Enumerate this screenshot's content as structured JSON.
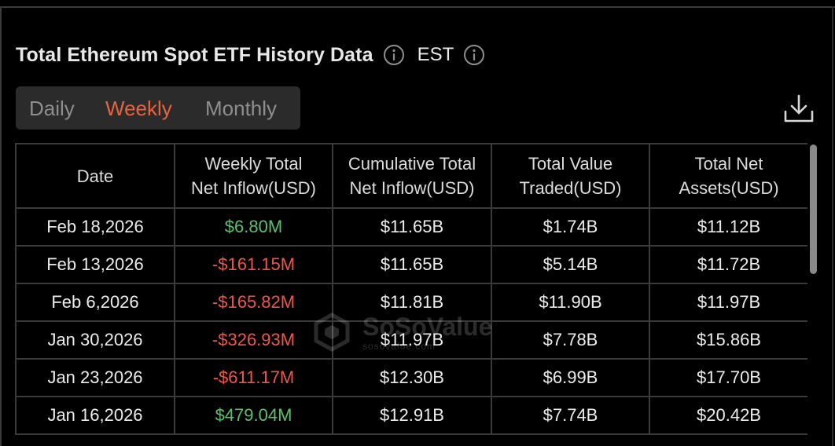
{
  "header": {
    "title": "Total Ethereum Spot ETF History Data",
    "timezone": "EST",
    "title_icon": "info-icon",
    "timezone_icon": "info-icon"
  },
  "tabs": [
    {
      "label": "Daily",
      "active": false
    },
    {
      "label": "Weekly",
      "active": true
    },
    {
      "label": "Monthly",
      "active": false
    }
  ],
  "toolbar": {
    "download_icon": "download-icon"
  },
  "table": {
    "columns": [
      {
        "line1": "Date",
        "line2": ""
      },
      {
        "line1": "Weekly Total",
        "line2": "Net Inflow(USD)"
      },
      {
        "line1": "Cumulative Total",
        "line2": "Net Inflow(USD)"
      },
      {
        "line1": "Total Value",
        "line2": "Traded(USD)"
      },
      {
        "line1": "Total Net",
        "line2": "Assets(USD)"
      }
    ],
    "rows": [
      {
        "date": "Feb 18,2026",
        "weekly_net_inflow": "$6.80M",
        "cumulative_net_inflow": "$11.65B",
        "value_traded": "$1.74B",
        "net_assets": "$11.12B"
      },
      {
        "date": "Feb 13,2026",
        "weekly_net_inflow": "-$161.15M",
        "cumulative_net_inflow": "$11.65B",
        "value_traded": "$5.14B",
        "net_assets": "$11.72B"
      },
      {
        "date": "Feb 6,2026",
        "weekly_net_inflow": "-$165.82M",
        "cumulative_net_inflow": "$11.81B",
        "value_traded": "$11.90B",
        "net_assets": "$11.97B"
      },
      {
        "date": "Jan 30,2026",
        "weekly_net_inflow": "-$326.93M",
        "cumulative_net_inflow": "$11.97B",
        "value_traded": "$7.78B",
        "net_assets": "$15.86B"
      },
      {
        "date": "Jan 23,2026",
        "weekly_net_inflow": "-$611.17M",
        "cumulative_net_inflow": "$12.30B",
        "value_traded": "$6.99B",
        "net_assets": "$17.70B"
      },
      {
        "date": "Jan 16,2026",
        "weekly_net_inflow": "$479.04M",
        "cumulative_net_inflow": "$12.91B",
        "value_traded": "$7.74B",
        "net_assets": "$20.42B"
      }
    ]
  },
  "watermark": {
    "brand": "SoSoValue",
    "sub": "sosovalue.com"
  },
  "colors": {
    "accent": "#e8643e",
    "positive": "#59c26a",
    "negative": "#ee5744",
    "background": "#000000"
  }
}
